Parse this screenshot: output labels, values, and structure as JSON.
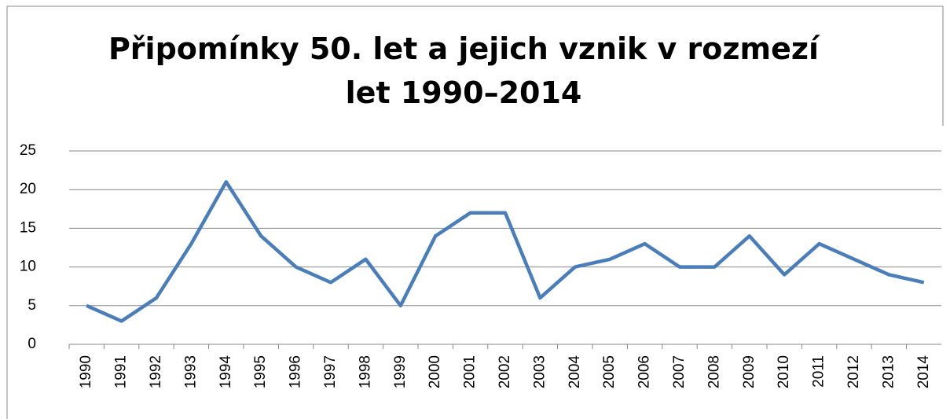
{
  "chart_data": {
    "type": "line",
    "title": "Připomínky 50. let a jejich vznik v rozmezí let 1990–2014",
    "categories": [
      "1990",
      "1991",
      "1992",
      "1993",
      "1994",
      "1995",
      "1996",
      "1997",
      "1998",
      "1999",
      "2000",
      "2001",
      "2002",
      "2003",
      "2004",
      "2005",
      "2006",
      "2007",
      "2008",
      "2009",
      "2010",
      "2011",
      "2012",
      "2013",
      "2014"
    ],
    "values": [
      5,
      3,
      6,
      13,
      21,
      14,
      10,
      8,
      11,
      5,
      14,
      17,
      17,
      6,
      10,
      11,
      13,
      10,
      10,
      14,
      9,
      13,
      11,
      9,
      8
    ],
    "color": "#4a7ebb",
    "ylim": [
      0,
      25
    ],
    "yticks": [
      0,
      5,
      10,
      15,
      20,
      25
    ],
    "grid": true
  }
}
